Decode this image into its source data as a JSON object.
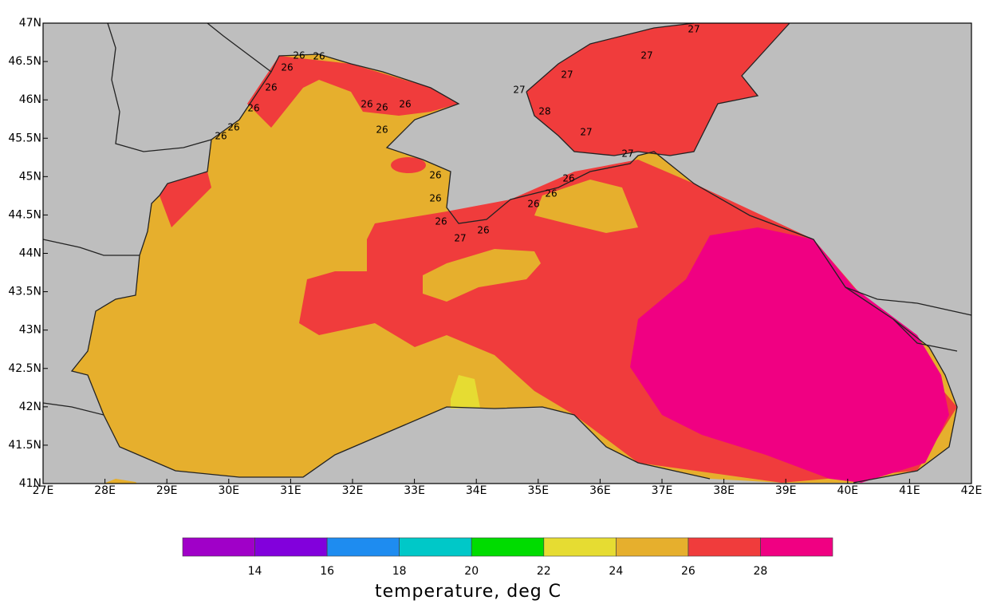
{
  "map": {
    "xlim": [
      27,
      42
    ],
    "ylim": [
      41,
      47
    ],
    "xticks": [
      {
        "value": 27,
        "label": "27E"
      },
      {
        "value": 28,
        "label": "28E"
      },
      {
        "value": 29,
        "label": "29E"
      },
      {
        "value": 30,
        "label": "30E"
      },
      {
        "value": 31,
        "label": "31E"
      },
      {
        "value": 32,
        "label": "32E"
      },
      {
        "value": 33,
        "label": "33E"
      },
      {
        "value": 34,
        "label": "34E"
      },
      {
        "value": 35,
        "label": "35E"
      },
      {
        "value": 36,
        "label": "36E"
      },
      {
        "value": 37,
        "label": "37E"
      },
      {
        "value": 38,
        "label": "38E"
      },
      {
        "value": 39,
        "label": "39E"
      },
      {
        "value": 40,
        "label": "40E"
      },
      {
        "value": 41,
        "label": "41E"
      },
      {
        "value": 42,
        "label": "42E"
      }
    ],
    "yticks": [
      {
        "value": 41,
        "label": "41N"
      },
      {
        "value": 41.5,
        "label": "41.5N"
      },
      {
        "value": 42,
        "label": "42N"
      },
      {
        "value": 42.5,
        "label": "42.5N"
      },
      {
        "value": 43,
        "label": "43N"
      },
      {
        "value": 43.5,
        "label": "43.5N"
      },
      {
        "value": 44,
        "label": "44N"
      },
      {
        "value": 44.5,
        "label": "44.5N"
      },
      {
        "value": 45,
        "label": "45N"
      },
      {
        "value": 45.5,
        "label": "45.5N"
      },
      {
        "value": 46,
        "label": "46N"
      },
      {
        "value": 46.5,
        "label": "46.5N"
      },
      {
        "value": 47,
        "label": "47N"
      }
    ],
    "contour_labels": [
      "26",
      "26",
      "26",
      "26",
      "26",
      "26",
      "26",
      "26",
      "26",
      "26",
      "26",
      "26",
      "26",
      "26",
      "27",
      "26",
      "26",
      "26",
      "26",
      "27",
      "27",
      "27",
      "27",
      "28",
      "27",
      "27"
    ]
  },
  "colorbar": {
    "title": "temperature, deg C",
    "levels": [
      14,
      16,
      18,
      20,
      22,
      24,
      26,
      28
    ],
    "colors": [
      "#a000c8",
      "#8200dc",
      "#1e8cf0",
      "#00c8c8",
      "#00dc00",
      "#e6dc32",
      "#e6af2d",
      "#f03c3c",
      "#f00082"
    ]
  }
}
